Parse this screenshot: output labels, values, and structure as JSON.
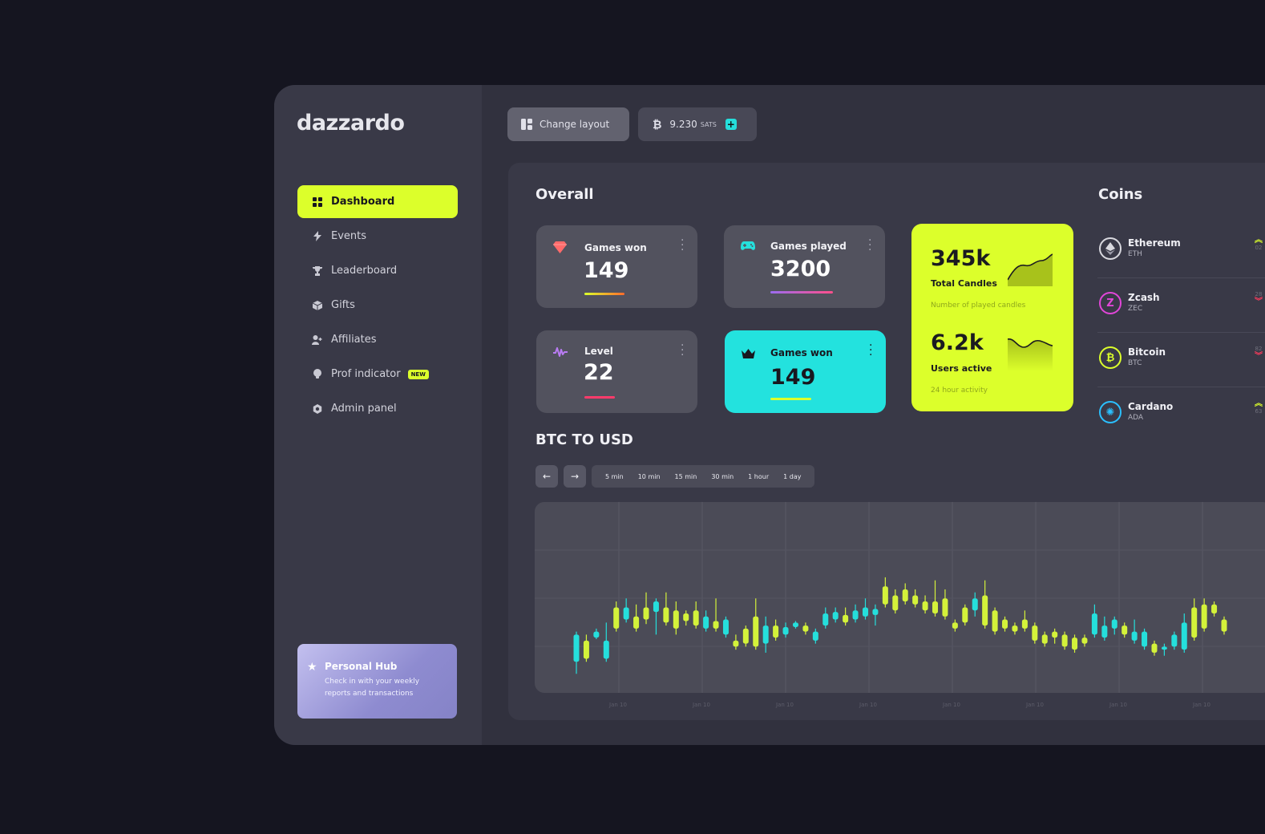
{
  "app": {
    "logo": "dazzardo"
  },
  "sidebar": {
    "items": [
      {
        "label": "Dashboard",
        "icon": "grid-icon",
        "active": true
      },
      {
        "label": "Events",
        "icon": "bolt-icon"
      },
      {
        "label": "Leaderboard",
        "icon": "trophy-icon"
      },
      {
        "label": "Gifts",
        "icon": "box-icon"
      },
      {
        "label": "Affiliates",
        "icon": "user-plus-icon"
      },
      {
        "label": "Prof indicator",
        "icon": "bulb-icon",
        "badge": "NEW"
      },
      {
        "label": "Admin panel",
        "icon": "hexagon-icon"
      }
    ],
    "hub": {
      "title": "Personal Hub",
      "text": "Check in with your weekly reports and transactions"
    }
  },
  "topbar": {
    "change_layout": "Change layout",
    "sats_value": "9.230",
    "sats_unit": "SATS",
    "plus": "+"
  },
  "overall": {
    "title": "Overall",
    "cards": [
      {
        "label": "Games won",
        "value": "149",
        "icon": "gem-icon",
        "accent": "#ff6b6b"
      },
      {
        "label": "Games played",
        "value": "3200",
        "icon": "gamepad-icon",
        "accent": "#9b6cf0"
      },
      {
        "label": "Level",
        "value": "22",
        "icon": "pulse-icon",
        "accent": "#ff3b6b"
      },
      {
        "label": "Games won",
        "value": "149",
        "icon": "crown-icon",
        "accent": "#dcff2b"
      }
    ],
    "highlight": {
      "top_value": "345k",
      "top_label": "Total Candles",
      "top_sub": "Number of played candles",
      "bottom_value": "6.2k",
      "bottom_label": "Users active",
      "bottom_sub": "24 hour activity"
    }
  },
  "coins": {
    "title": "Coins",
    "items": [
      {
        "name": "Ethereum",
        "code": "ETH",
        "delta": "02",
        "trend": "up",
        "color": "#d8d8de",
        "glyph": "♦"
      },
      {
        "name": "Zcash",
        "code": "ZEC",
        "delta": "28",
        "trend": "down",
        "color": "#e046d8",
        "glyph": "Z"
      },
      {
        "name": "Bitcoin",
        "code": "BTC",
        "delta": "82",
        "trend": "down",
        "color": "#dcff2b",
        "glyph": "₿"
      },
      {
        "name": "Cardano",
        "code": "ADA",
        "delta": "63",
        "trend": "up",
        "color": "#2bc0ff",
        "glyph": "✺"
      }
    ]
  },
  "btc": {
    "title": "BTC TO USD",
    "prev": "←",
    "next": "→",
    "ranges": [
      "5 min",
      "10 min",
      "15 min",
      "30 min",
      "1 hour",
      "1 day"
    ]
  },
  "chart_data": {
    "type": "candlestick",
    "title": "BTC TO USD",
    "x_tick_labels": [
      "Jan 10",
      "Jan 10",
      "Jan 10",
      "Jan 10",
      "Jan 10",
      "Jan 10",
      "Jan 10",
      "Jan 10"
    ],
    "ylim": [
      0,
      100
    ],
    "grid": true,
    "colors": {
      "up": "#d4f23a",
      "down": "#25dfdc"
    },
    "candles": [
      {
        "o": 10,
        "c": 28,
        "h": 30,
        "l": 2,
        "dir": "down"
      },
      {
        "o": 12,
        "c": 24,
        "h": 28,
        "l": 10,
        "dir": "up"
      },
      {
        "o": 26,
        "c": 30,
        "h": 32,
        "l": 25,
        "dir": "down"
      },
      {
        "o": 12,
        "c": 24,
        "h": 36,
        "l": 10,
        "dir": "down"
      },
      {
        "o": 32,
        "c": 46,
        "h": 50,
        "l": 30,
        "dir": "up"
      },
      {
        "o": 38,
        "c": 46,
        "h": 52,
        "l": 36,
        "dir": "down"
      },
      {
        "o": 32,
        "c": 40,
        "h": 48,
        "l": 30,
        "dir": "up"
      },
      {
        "o": 38,
        "c": 46,
        "h": 56,
        "l": 35,
        "dir": "up"
      },
      {
        "o": 43,
        "c": 50,
        "h": 52,
        "l": 28,
        "dir": "down"
      },
      {
        "o": 36,
        "c": 46,
        "h": 56,
        "l": 34,
        "dir": "up"
      },
      {
        "o": 32,
        "c": 44,
        "h": 50,
        "l": 28,
        "dir": "up"
      },
      {
        "o": 37,
        "c": 42,
        "h": 44,
        "l": 34,
        "dir": "up"
      },
      {
        "o": 34,
        "c": 44,
        "h": 50,
        "l": 32,
        "dir": "up"
      },
      {
        "o": 32,
        "c": 40,
        "h": 44,
        "l": 30,
        "dir": "down"
      },
      {
        "o": 32,
        "c": 37,
        "h": 52,
        "l": 30,
        "dir": "up"
      },
      {
        "o": 28,
        "c": 38,
        "h": 40,
        "l": 26,
        "dir": "down"
      },
      {
        "o": 20,
        "c": 24,
        "h": 28,
        "l": 18,
        "dir": "up"
      },
      {
        "o": 22,
        "c": 32,
        "h": 34,
        "l": 20,
        "dir": "up"
      },
      {
        "o": 20,
        "c": 40,
        "h": 52,
        "l": 18,
        "dir": "up"
      },
      {
        "o": 22,
        "c": 34,
        "h": 40,
        "l": 16,
        "dir": "down"
      },
      {
        "o": 26,
        "c": 34,
        "h": 38,
        "l": 24,
        "dir": "up"
      },
      {
        "o": 28,
        "c": 33,
        "h": 36,
        "l": 26,
        "dir": "down"
      },
      {
        "o": 33,
        "c": 36,
        "h": 37,
        "l": 32,
        "dir": "down"
      },
      {
        "o": 30,
        "c": 34,
        "h": 36,
        "l": 28,
        "dir": "up"
      },
      {
        "o": 24,
        "c": 30,
        "h": 32,
        "l": 22,
        "dir": "down"
      },
      {
        "o": 34,
        "c": 42,
        "h": 46,
        "l": 32,
        "dir": "down"
      },
      {
        "o": 38,
        "c": 43,
        "h": 46,
        "l": 36,
        "dir": "down"
      },
      {
        "o": 36,
        "c": 41,
        "h": 46,
        "l": 34,
        "dir": "up"
      },
      {
        "o": 38,
        "c": 44,
        "h": 48,
        "l": 36,
        "dir": "down"
      },
      {
        "o": 40,
        "c": 46,
        "h": 52,
        "l": 38,
        "dir": "down"
      },
      {
        "o": 41,
        "c": 45,
        "h": 48,
        "l": 34,
        "dir": "down"
      },
      {
        "o": 48,
        "c": 60,
        "h": 66,
        "l": 46,
        "dir": "up"
      },
      {
        "o": 44,
        "c": 54,
        "h": 58,
        "l": 42,
        "dir": "up"
      },
      {
        "o": 50,
        "c": 58,
        "h": 62,
        "l": 48,
        "dir": "up"
      },
      {
        "o": 48,
        "c": 54,
        "h": 58,
        "l": 46,
        "dir": "up"
      },
      {
        "o": 44,
        "c": 50,
        "h": 54,
        "l": 42,
        "dir": "up"
      },
      {
        "o": 42,
        "c": 50,
        "h": 64,
        "l": 40,
        "dir": "up"
      },
      {
        "o": 40,
        "c": 52,
        "h": 58,
        "l": 38,
        "dir": "up"
      },
      {
        "o": 32,
        "c": 36,
        "h": 38,
        "l": 30,
        "dir": "up"
      },
      {
        "o": 36,
        "c": 46,
        "h": 48,
        "l": 34,
        "dir": "up"
      },
      {
        "o": 44,
        "c": 52,
        "h": 56,
        "l": 40,
        "dir": "down"
      },
      {
        "o": 34,
        "c": 54,
        "h": 64,
        "l": 32,
        "dir": "up"
      },
      {
        "o": 30,
        "c": 44,
        "h": 46,
        "l": 28,
        "dir": "up"
      },
      {
        "o": 32,
        "c": 38,
        "h": 40,
        "l": 30,
        "dir": "up"
      },
      {
        "o": 30,
        "c": 34,
        "h": 36,
        "l": 28,
        "dir": "up"
      },
      {
        "o": 32,
        "c": 38,
        "h": 44,
        "l": 30,
        "dir": "up"
      },
      {
        "o": 24,
        "c": 34,
        "h": 36,
        "l": 22,
        "dir": "up"
      },
      {
        "o": 22,
        "c": 28,
        "h": 30,
        "l": 20,
        "dir": "up"
      },
      {
        "o": 26,
        "c": 30,
        "h": 32,
        "l": 22,
        "dir": "up"
      },
      {
        "o": 20,
        "c": 28,
        "h": 30,
        "l": 18,
        "dir": "up"
      },
      {
        "o": 18,
        "c": 26,
        "h": 28,
        "l": 16,
        "dir": "up"
      },
      {
        "o": 22,
        "c": 26,
        "h": 28,
        "l": 20,
        "dir": "up"
      },
      {
        "o": 28,
        "c": 42,
        "h": 48,
        "l": 26,
        "dir": "down"
      },
      {
        "o": 26,
        "c": 34,
        "h": 40,
        "l": 24,
        "dir": "down"
      },
      {
        "o": 32,
        "c": 38,
        "h": 40,
        "l": 28,
        "dir": "down"
      },
      {
        "o": 28,
        "c": 34,
        "h": 36,
        "l": 26,
        "dir": "up"
      },
      {
        "o": 24,
        "c": 30,
        "h": 38,
        "l": 22,
        "dir": "down"
      },
      {
        "o": 20,
        "c": 30,
        "h": 32,
        "l": 18,
        "dir": "down"
      },
      {
        "o": 16,
        "c": 22,
        "h": 24,
        "l": 14,
        "dir": "up"
      },
      {
        "o": 18,
        "c": 20,
        "h": 22,
        "l": 14,
        "dir": "down"
      },
      {
        "o": 20,
        "c": 28,
        "h": 30,
        "l": 18,
        "dir": "down"
      },
      {
        "o": 18,
        "c": 36,
        "h": 42,
        "l": 16,
        "dir": "down"
      },
      {
        "o": 26,
        "c": 46,
        "h": 52,
        "l": 24,
        "dir": "up"
      },
      {
        "o": 32,
        "c": 48,
        "h": 52,
        "l": 30,
        "dir": "up"
      },
      {
        "o": 42,
        "c": 48,
        "h": 50,
        "l": 40,
        "dir": "up"
      },
      {
        "o": 30,
        "c": 38,
        "h": 40,
        "l": 28,
        "dir": "up"
      }
    ]
  }
}
